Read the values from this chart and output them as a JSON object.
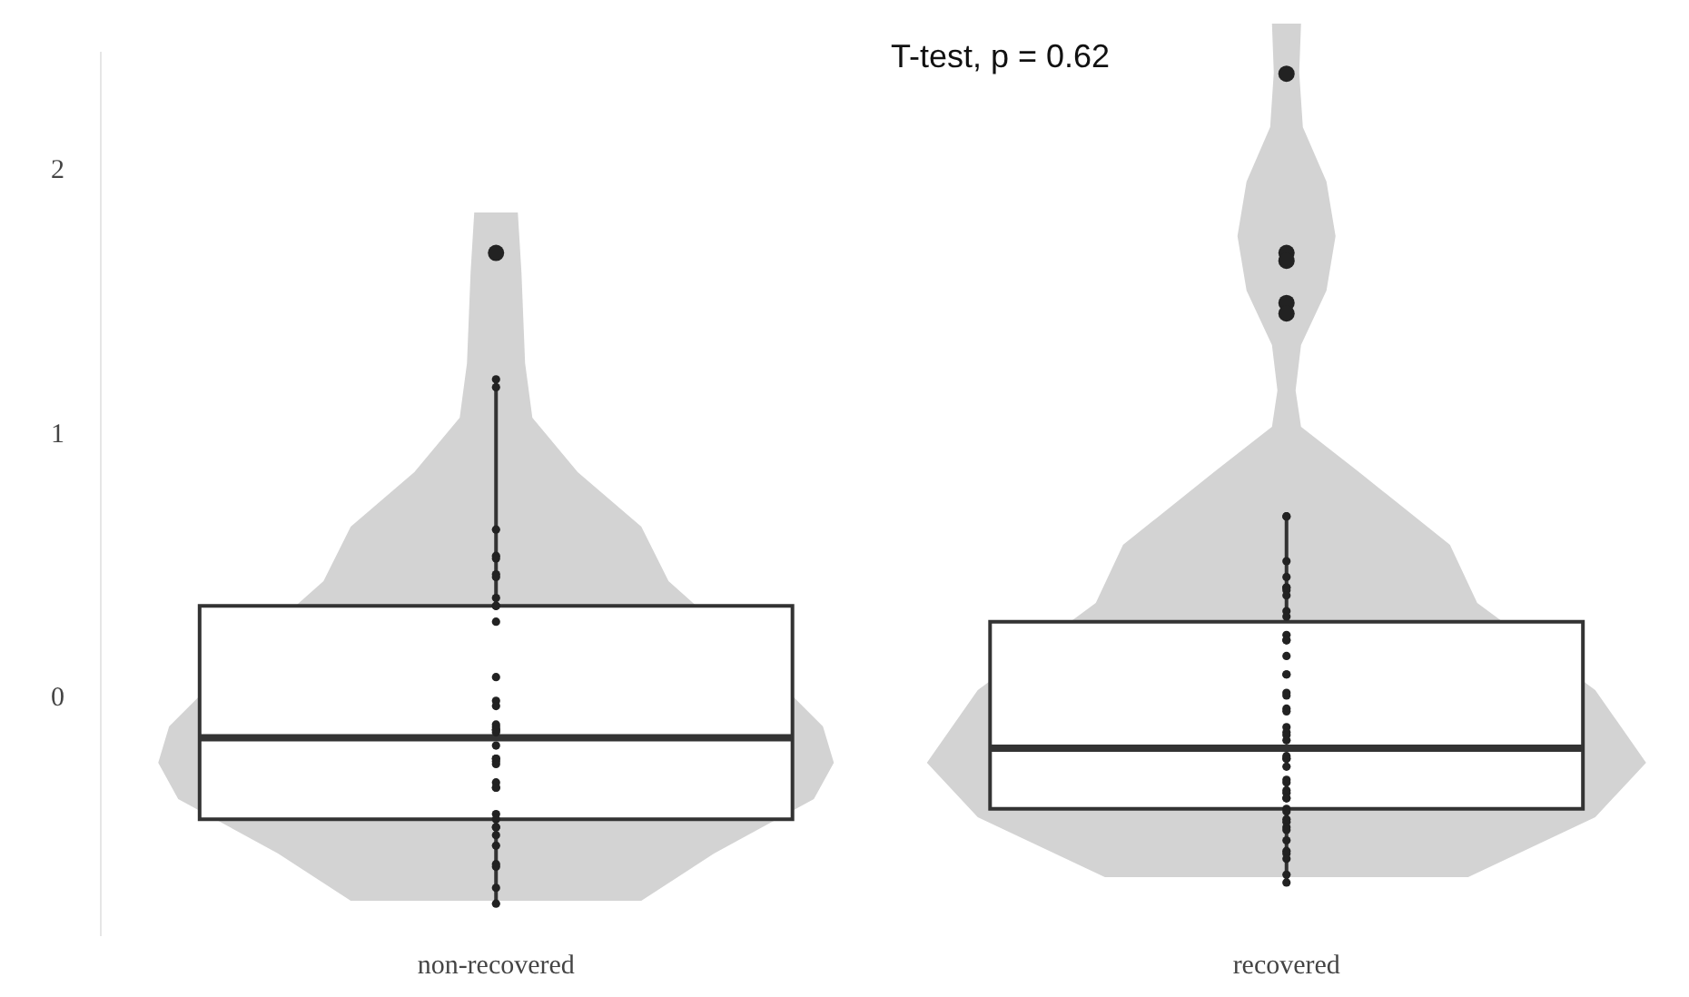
{
  "chart_data": {
    "type": "box",
    "categories": [
      "non-recovered",
      "recovered"
    ],
    "boxes": [
      {
        "low": -0.78,
        "q1": -0.46,
        "median": -0.15,
        "q3": 0.35,
        "high": 1.21,
        "outliers": [
          1.69
        ]
      },
      {
        "low": -0.7,
        "q1": -0.42,
        "median": -0.19,
        "q3": 0.29,
        "high": 0.69,
        "outliers": [
          2.37,
          1.69,
          1.66,
          1.5,
          1.46
        ]
      }
    ],
    "series": [
      {
        "type": "scatter",
        "color": "#222222",
        "marker": "circle",
        "x": [
          "non-recovered",
          "non-recovered",
          "non-recovered",
          "non-recovered",
          "non-recovered",
          "non-recovered",
          "non-recovered",
          "non-recovered",
          "non-recovered",
          "non-recovered",
          "non-recovered",
          "non-recovered",
          "non-recovered",
          "non-recovered",
          "non-recovered",
          "non-recovered",
          "non-recovered",
          "non-recovered",
          "non-recovered",
          "non-recovered",
          "non-recovered",
          "non-recovered",
          "non-recovered",
          "non-recovered",
          "non-recovered",
          "non-recovered",
          "non-recovered",
          "non-recovered",
          "non-recovered",
          "non-recovered",
          "non-recovered",
          "non-recovered",
          "non-recovered",
          "non-recovered",
          "non-recovered",
          "non-recovered",
          "non-recovered",
          "recovered",
          "recovered",
          "recovered",
          "recovered",
          "recovered",
          "recovered",
          "recovered",
          "recovered",
          "recovered",
          "recovered",
          "recovered",
          "recovered",
          "recovered",
          "recovered",
          "recovered",
          "recovered",
          "recovered",
          "recovered",
          "recovered",
          "recovered",
          "recovered",
          "recovered",
          "recovered",
          "recovered",
          "recovered",
          "recovered",
          "recovered",
          "recovered",
          "recovered",
          "recovered",
          "recovered",
          "recovered",
          "recovered",
          "recovered",
          "recovered",
          "recovered",
          "recovered",
          "recovered",
          "recovered",
          "recovered",
          "recovered",
          "recovered",
          "recovered",
          "recovered",
          "recovered",
          "recovered"
        ],
        "values": [
          1.21,
          1.18,
          0.64,
          0.54,
          0.53,
          0.47,
          0.46,
          0.38,
          0.35,
          0.35,
          0.29,
          0.08,
          -0.01,
          -0.03,
          -0.1,
          -0.11,
          -0.12,
          -0.12,
          -0.13,
          -0.18,
          -0.23,
          -0.23,
          -0.24,
          -0.25,
          -0.32,
          -0.34,
          -0.34,
          -0.44,
          -0.46,
          -0.49,
          -0.49,
          -0.52,
          -0.56,
          -0.63,
          -0.64,
          -0.72,
          -0.78,
          0.69,
          0.69,
          0.52,
          0.46,
          0.42,
          0.42,
          0.41,
          0.39,
          0.33,
          0.31,
          0.24,
          0.22,
          0.22,
          0.16,
          0.09,
          0.09,
          0.02,
          0.01,
          -0.04,
          -0.05,
          -0.11,
          -0.13,
          -0.14,
          -0.16,
          -0.22,
          -0.23,
          -0.23,
          -0.26,
          -0.31,
          -0.32,
          -0.35,
          -0.36,
          -0.38,
          -0.38,
          -0.42,
          -0.43,
          -0.46,
          -0.47,
          -0.49,
          -0.5,
          -0.54,
          -0.58,
          -0.59,
          -0.61,
          -0.67,
          -0.7
        ]
      }
    ],
    "ylim": [
      -0.9,
      2.45
    ],
    "yticks": [
      0,
      1,
      2
    ],
    "grid": false,
    "legend": false,
    "annotations": [
      "T-test, p = 0.62"
    ]
  }
}
